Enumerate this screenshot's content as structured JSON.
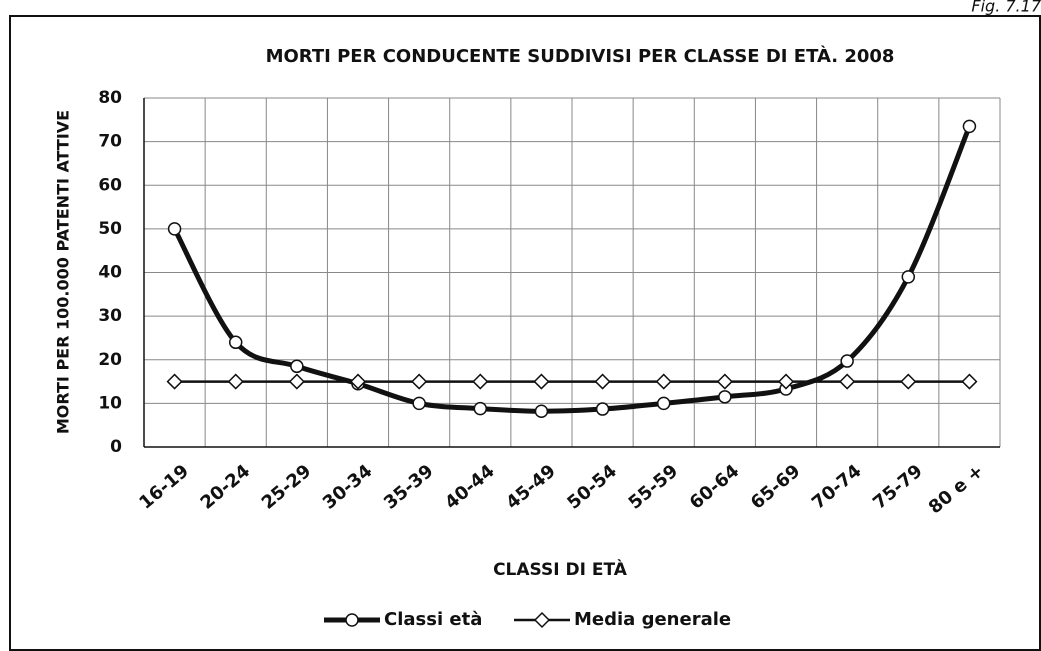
{
  "figure_label": "Fig. 7.17",
  "chart_data": {
    "type": "line",
    "title": "MORTI PER CONDUCENTE SUDDIVISI PER CLASSE DI ETÀ. 2008",
    "x_label": "CLASSI DI ETÀ",
    "y_label": "MORTI PER 100.000 PATENTI ATTIVE",
    "categories": [
      "16-19",
      "20-24",
      "25-29",
      "30-34",
      "35-39",
      "40-44",
      "45-49",
      "50-54",
      "55-59",
      "60-64",
      "65-69",
      "70-74",
      "75-79",
      "80 e +"
    ],
    "series": [
      {
        "name": "Classi età",
        "color": "#111111",
        "marker": "circle",
        "values": [
          50,
          24,
          18.5,
          14.5,
          10,
          8.8,
          8.2,
          8.7,
          10,
          11.5,
          13.3,
          19.7,
          39,
          73.5
        ]
      },
      {
        "name": "Media generale",
        "color": "#111111",
        "marker": "diamond",
        "values": [
          15,
          15,
          15,
          15,
          15,
          15,
          15,
          15,
          15,
          15,
          15,
          15,
          15,
          15
        ]
      }
    ],
    "ylim": [
      0,
      80
    ],
    "yticks": [
      0,
      10,
      20,
      30,
      40,
      50,
      60,
      70,
      80
    ],
    "grid": true,
    "legend": "bottom"
  }
}
